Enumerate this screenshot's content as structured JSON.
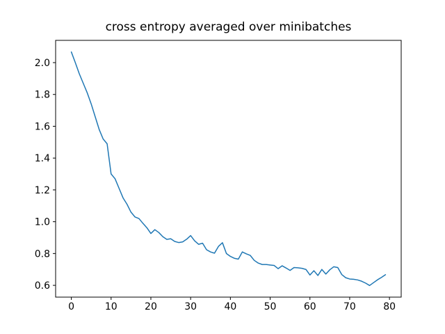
{
  "figure": {
    "background_color": "#ffffff",
    "spine_color": "#000000",
    "text_color": "#000000"
  },
  "chart_data": {
    "type": "line",
    "title": "cross entropy averaged over minibatches",
    "xlabel": "",
    "ylabel": "",
    "grid": false,
    "legend": "none",
    "xlim": [
      -3.95,
      82.95
    ],
    "ylim": [
      0.526,
      2.14
    ],
    "x_ticks": [
      0,
      10,
      20,
      30,
      40,
      50,
      60,
      70,
      80
    ],
    "y_ticks": [
      0.6,
      0.8,
      1.0,
      1.2,
      1.4,
      1.6,
      1.8,
      2.0
    ],
    "x": [
      0,
      1,
      2,
      3,
      4,
      5,
      6,
      7,
      8,
      9,
      10,
      11,
      12,
      13,
      14,
      15,
      16,
      17,
      18,
      19,
      20,
      21,
      22,
      23,
      24,
      25,
      26,
      27,
      28,
      29,
      30,
      31,
      32,
      33,
      34,
      35,
      36,
      37,
      38,
      39,
      40,
      41,
      42,
      43,
      44,
      45,
      46,
      47,
      48,
      49,
      50,
      51,
      52,
      53,
      54,
      55,
      56,
      57,
      58,
      59,
      60,
      61,
      62,
      63,
      64,
      65,
      66,
      67,
      68,
      69,
      70,
      71,
      72,
      73,
      74,
      75,
      76,
      77,
      78,
      79
    ],
    "series": [
      {
        "name": "cross entropy",
        "color": "#1f77b4",
        "line_width": 1.5,
        "values": [
          2.067,
          2.0,
          1.93,
          1.87,
          1.81,
          1.74,
          1.66,
          1.58,
          1.52,
          1.49,
          1.3,
          1.27,
          1.21,
          1.15,
          1.11,
          1.06,
          1.03,
          1.02,
          0.99,
          0.962,
          0.926,
          0.95,
          0.932,
          0.906,
          0.889,
          0.893,
          0.876,
          0.869,
          0.873,
          0.89,
          0.913,
          0.88,
          0.858,
          0.865,
          0.824,
          0.81,
          0.802,
          0.845,
          0.868,
          0.8,
          0.782,
          0.77,
          0.765,
          0.81,
          0.798,
          0.788,
          0.757,
          0.74,
          0.731,
          0.731,
          0.728,
          0.725,
          0.705,
          0.723,
          0.709,
          0.694,
          0.712,
          0.71,
          0.707,
          0.7,
          0.665,
          0.692,
          0.662,
          0.7,
          0.671,
          0.698,
          0.717,
          0.712,
          0.668,
          0.648,
          0.64,
          0.638,
          0.634,
          0.626,
          0.614,
          0.599,
          0.617,
          0.635,
          0.65,
          0.667
        ]
      }
    ]
  }
}
